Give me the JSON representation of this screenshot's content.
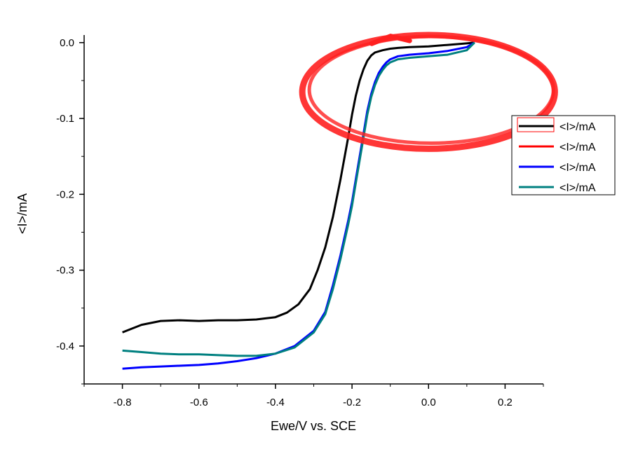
{
  "chart_data": {
    "type": "line",
    "title": "",
    "xlabel": "Ewe/V vs. SCE",
    "ylabel": "<I>/mA",
    "xlim": [
      -0.9,
      0.3
    ],
    "ylim": [
      -0.45,
      0.01
    ],
    "x_ticks": [
      -0.8,
      -0.6,
      -0.4,
      -0.2,
      0.0,
      0.2
    ],
    "x_tick_labels": [
      "-0.8",
      "-0.6",
      "-0.4",
      "-0.2",
      "0.0",
      "0.2"
    ],
    "y_ticks": [
      0.0,
      -0.1,
      -0.2,
      -0.3,
      -0.4
    ],
    "y_tick_labels": [
      "0.0",
      "-0.1",
      "-0.2",
      "-0.3",
      "-0.4"
    ],
    "grid": false,
    "legend_position": "right",
    "series": [
      {
        "name": "<I>/mA",
        "color": "#000000",
        "x": [
          -0.8,
          -0.75,
          -0.7,
          -0.65,
          -0.6,
          -0.55,
          -0.5,
          -0.45,
          -0.4,
          -0.37,
          -0.34,
          -0.31,
          -0.29,
          -0.27,
          -0.25,
          -0.23,
          -0.21,
          -0.2,
          -0.19,
          -0.18,
          -0.17,
          -0.16,
          -0.15,
          -0.14,
          -0.12,
          -0.1,
          -0.08,
          -0.05,
          0.0,
          0.05,
          0.1,
          0.12
        ],
        "y": [
          -0.382,
          -0.372,
          -0.367,
          -0.366,
          -0.367,
          -0.366,
          -0.366,
          -0.365,
          -0.362,
          -0.356,
          -0.345,
          -0.325,
          -0.3,
          -0.27,
          -0.23,
          -0.18,
          -0.125,
          -0.095,
          -0.07,
          -0.05,
          -0.035,
          -0.024,
          -0.017,
          -0.013,
          -0.01,
          -0.008,
          -0.007,
          -0.006,
          -0.005,
          -0.003,
          -0.001,
          0.0
        ]
      },
      {
        "name": "<I>/mA",
        "color": "#ff0000",
        "x": [],
        "y": []
      },
      {
        "name": "<I>/mA",
        "color": "#0000ff",
        "x": [
          -0.8,
          -0.75,
          -0.7,
          -0.65,
          -0.6,
          -0.55,
          -0.5,
          -0.45,
          -0.4,
          -0.35,
          -0.3,
          -0.27,
          -0.25,
          -0.23,
          -0.21,
          -0.2,
          -0.19,
          -0.18,
          -0.17,
          -0.16,
          -0.15,
          -0.14,
          -0.13,
          -0.12,
          -0.11,
          -0.1,
          -0.08,
          -0.05,
          0.0,
          0.05,
          0.1,
          0.12
        ],
        "y": [
          -0.43,
          -0.428,
          -0.427,
          -0.426,
          -0.425,
          -0.423,
          -0.42,
          -0.416,
          -0.41,
          -0.4,
          -0.38,
          -0.355,
          -0.32,
          -0.28,
          -0.235,
          -0.21,
          -0.18,
          -0.15,
          -0.12,
          -0.09,
          -0.068,
          -0.052,
          -0.04,
          -0.032,
          -0.026,
          -0.022,
          -0.018,
          -0.016,
          -0.014,
          -0.011,
          -0.006,
          0.0
        ]
      },
      {
        "name": "<I>/mA",
        "color": "#008080",
        "x": [
          -0.8,
          -0.75,
          -0.7,
          -0.65,
          -0.6,
          -0.55,
          -0.5,
          -0.45,
          -0.4,
          -0.35,
          -0.3,
          -0.27,
          -0.25,
          -0.23,
          -0.21,
          -0.2,
          -0.19,
          -0.18,
          -0.17,
          -0.16,
          -0.15,
          -0.14,
          -0.13,
          -0.12,
          -0.11,
          -0.1,
          -0.08,
          -0.05,
          0.0,
          0.05,
          0.1,
          0.12
        ],
        "y": [
          -0.406,
          -0.408,
          -0.41,
          -0.411,
          -0.411,
          -0.412,
          -0.413,
          -0.413,
          -0.41,
          -0.402,
          -0.382,
          -0.358,
          -0.325,
          -0.285,
          -0.24,
          -0.215,
          -0.185,
          -0.155,
          -0.125,
          -0.095,
          -0.072,
          -0.056,
          -0.044,
          -0.036,
          -0.03,
          -0.026,
          -0.022,
          -0.02,
          -0.018,
          -0.016,
          -0.01,
          0.0
        ]
      }
    ],
    "annotations": [
      {
        "type": "hand-drawn-ellipse",
        "color": "#ff2020",
        "cx": 0.0,
        "cy": -0.065,
        "rx": 0.33,
        "ry": 0.075
      }
    ]
  }
}
